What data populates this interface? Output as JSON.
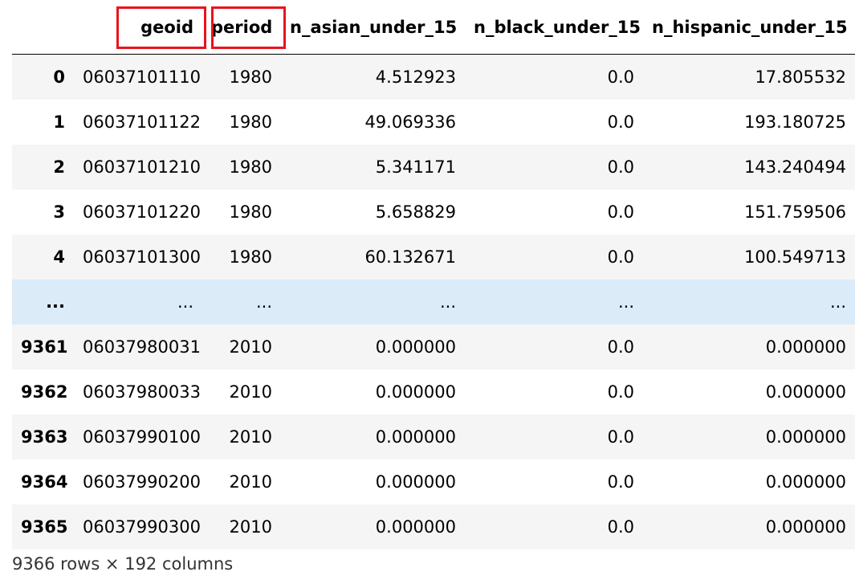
{
  "dataframe": {
    "columns": [
      "",
      "geoid",
      "period",
      "n_asian_under_15",
      "n_black_under_15",
      "n_hispanic_under_15"
    ],
    "highlighted_columns": [
      "geoid",
      "period"
    ],
    "highlight_color": "#e8141c",
    "row_stripe_color": "#f5f5f5",
    "ellipsis_row_color": "#dcebf8",
    "rows": [
      {
        "index": "0",
        "geoid": "06037101110",
        "period": "1980",
        "n_asian_under_15": "4.512923",
        "n_black_under_15": "0.0",
        "n_hispanic_under_15": "17.805532"
      },
      {
        "index": "1",
        "geoid": "06037101122",
        "period": "1980",
        "n_asian_under_15": "49.069336",
        "n_black_under_15": "0.0",
        "n_hispanic_under_15": "193.180725"
      },
      {
        "index": "2",
        "geoid": "06037101210",
        "period": "1980",
        "n_asian_under_15": "5.341171",
        "n_black_under_15": "0.0",
        "n_hispanic_under_15": "143.240494"
      },
      {
        "index": "3",
        "geoid": "06037101220",
        "period": "1980",
        "n_asian_under_15": "5.658829",
        "n_black_under_15": "0.0",
        "n_hispanic_under_15": "151.759506"
      },
      {
        "index": "4",
        "geoid": "06037101300",
        "period": "1980",
        "n_asian_under_15": "60.132671",
        "n_black_under_15": "0.0",
        "n_hispanic_under_15": "100.549713"
      },
      {
        "index": "...",
        "geoid": "...",
        "period": "...",
        "n_asian_under_15": "...",
        "n_black_under_15": "...",
        "n_hispanic_under_15": "..."
      },
      {
        "index": "9361",
        "geoid": "06037980031",
        "period": "2010",
        "n_asian_under_15": "0.000000",
        "n_black_under_15": "0.0",
        "n_hispanic_under_15": "0.000000"
      },
      {
        "index": "9362",
        "geoid": "06037980033",
        "period": "2010",
        "n_asian_under_15": "0.000000",
        "n_black_under_15": "0.0",
        "n_hispanic_under_15": "0.000000"
      },
      {
        "index": "9363",
        "geoid": "06037990100",
        "period": "2010",
        "n_asian_under_15": "0.000000",
        "n_black_under_15": "0.0",
        "n_hispanic_under_15": "0.000000"
      },
      {
        "index": "9364",
        "geoid": "06037990200",
        "period": "2010",
        "n_asian_under_15": "0.000000",
        "n_black_under_15": "0.0",
        "n_hispanic_under_15": "0.000000"
      },
      {
        "index": "9365",
        "geoid": "06037990300",
        "period": "2010",
        "n_asian_under_15": "0.000000",
        "n_black_under_15": "0.0",
        "n_hispanic_under_15": "0.000000"
      }
    ],
    "shape_text": "9366 rows × 192 columns"
  }
}
